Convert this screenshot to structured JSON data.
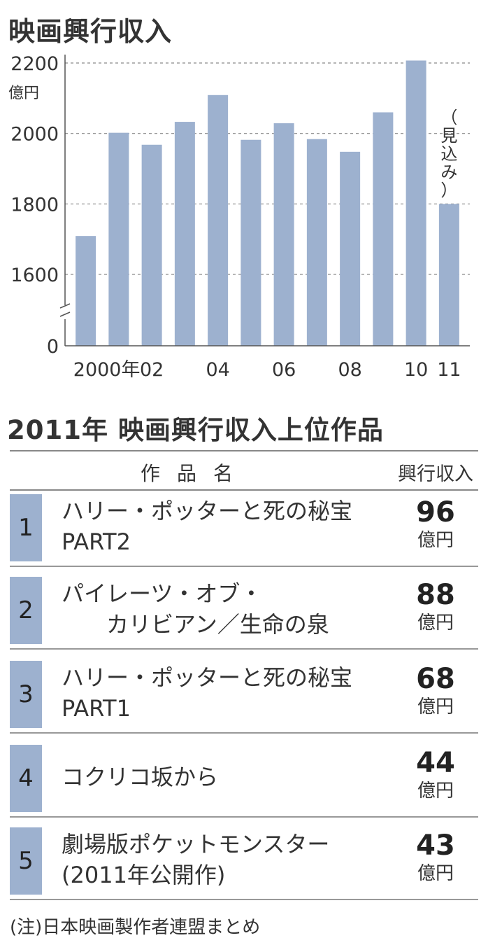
{
  "chart_data": {
    "type": "bar",
    "title": "映画興行収入",
    "unit_label": "億円",
    "categories": [
      "2000",
      "2001",
      "2002",
      "2003",
      "2004",
      "2005",
      "2006",
      "2007",
      "2008",
      "2009",
      "2010",
      "2011"
    ],
    "x_tick_labels": [
      "2000年",
      "",
      "02",
      "",
      "04",
      "",
      "06",
      "",
      "08",
      "",
      "10",
      "11"
    ],
    "values": [
      1709,
      2002,
      1968,
      2033,
      2109,
      1982,
      2029,
      1984,
      1948,
      2060,
      2207,
      1800
    ],
    "annotation": {
      "category": "2011",
      "text": "（見込み）"
    },
    "y_tick_labels": [
      {
        "value": 2200,
        "label": "2200"
      },
      {
        "value": 2000,
        "label": "2000"
      },
      {
        "value": 1800,
        "label": "1800"
      },
      {
        "value": 1600,
        "label": "1600"
      },
      {
        "value": 0,
        "label": "0"
      }
    ],
    "ylim": [
      1500,
      2250
    ],
    "axis_break": true,
    "grid": "dashed",
    "bar_color": "#9db1cf"
  },
  "ranking": {
    "title": "2011年 映画興行収入上位作品",
    "header": {
      "title_col": "作品名",
      "revenue_col": "興行収入"
    },
    "rows": [
      {
        "rank": "1",
        "title": "ハリー・ポッターと死の秘宝\nPART2",
        "revenue": "96",
        "unit": "億円"
      },
      {
        "rank": "2",
        "title": "パイレーツ・オブ・\n　　カリビアン／生命の泉",
        "revenue": "88",
        "unit": "億円"
      },
      {
        "rank": "3",
        "title": "ハリー・ポッターと死の秘宝\nPART1",
        "revenue": "68",
        "unit": "億円"
      },
      {
        "rank": "4",
        "title": "コクリコ坂から",
        "revenue": "44",
        "unit": "億円"
      },
      {
        "rank": "5",
        "title": "劇場版ポケットモンスター\n(2011年公開作)",
        "revenue": "43",
        "unit": "億円"
      }
    ]
  },
  "footnote": "(注)日本映画製作者連盟まとめ"
}
